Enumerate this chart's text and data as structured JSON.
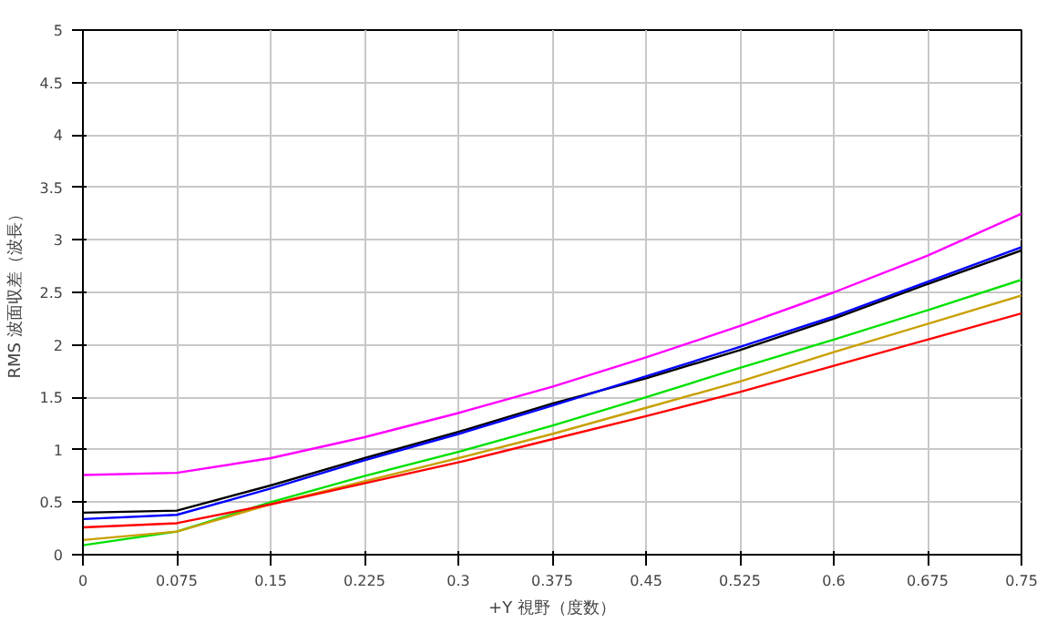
{
  "chart_data": {
    "type": "line",
    "xlabel": "+Y 視野（度数）",
    "ylabel": "RMS 波面収差（波長）",
    "x": [
      0,
      0.075,
      0.15,
      0.225,
      0.3,
      0.375,
      0.45,
      0.525,
      0.6,
      0.675,
      0.75
    ],
    "series": [
      {
        "color": "#ff00ff",
        "values": [
          0.76,
          0.78,
          0.92,
          1.12,
          1.35,
          1.6,
          1.88,
          2.18,
          2.5,
          2.85,
          3.25
        ]
      },
      {
        "color": "#000000",
        "values": [
          0.4,
          0.42,
          0.66,
          0.92,
          1.17,
          1.44,
          1.68,
          1.95,
          2.25,
          2.58,
          2.9
        ]
      },
      {
        "color": "#0000ff",
        "values": [
          0.34,
          0.38,
          0.63,
          0.9,
          1.15,
          1.42,
          1.7,
          1.98,
          2.27,
          2.6,
          2.93
        ]
      },
      {
        "color": "#00e000",
        "values": [
          0.09,
          0.22,
          0.5,
          0.75,
          0.98,
          1.23,
          1.5,
          1.78,
          2.05,
          2.33,
          2.62
        ]
      },
      {
        "color": "#c8a000",
        "values": [
          0.14,
          0.22,
          0.48,
          0.7,
          0.92,
          1.15,
          1.4,
          1.65,
          1.93,
          2.2,
          2.47
        ]
      },
      {
        "color": "#ff0000",
        "values": [
          0.26,
          0.3,
          0.48,
          0.68,
          0.88,
          1.1,
          1.32,
          1.55,
          1.8,
          2.05,
          2.3
        ]
      }
    ],
    "xlim": [
      0,
      0.75
    ],
    "ylim": [
      0,
      5
    ],
    "xticks": [
      0,
      0.075,
      0.15,
      0.225,
      0.3,
      0.375,
      0.45,
      0.525,
      0.6,
      0.675,
      0.75
    ],
    "yticks": [
      0,
      0.5,
      1,
      1.5,
      2,
      2.5,
      3,
      3.5,
      4,
      4.5,
      5
    ],
    "grid": true,
    "marker": "none",
    "line_style": "solid"
  }
}
